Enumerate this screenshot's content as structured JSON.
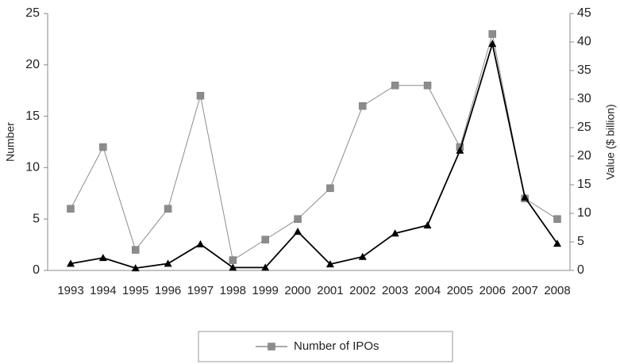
{
  "chart_data": {
    "type": "line",
    "categories": [
      "1993",
      "1994",
      "1995",
      "1996",
      "1997",
      "1998",
      "1999",
      "2000",
      "2001",
      "2002",
      "2003",
      "2004",
      "2005",
      "2006",
      "2007",
      "2008"
    ],
    "series": [
      {
        "name": "Number of IPOs",
        "color": "#8c8c8c",
        "marker": "square",
        "values": [
          6,
          12,
          2,
          6,
          17,
          1,
          3,
          5,
          8,
          16,
          18,
          18,
          12,
          23,
          7,
          5
        ]
      },
      {
        "color": "#000000",
        "marker": "triangle",
        "axis": "y2",
        "values": [
          1.2,
          2.2,
          0.4,
          1.2,
          4.6,
          0.5,
          0.5,
          6.8,
          1.1,
          2.4,
          6.5,
          7.9,
          21,
          39.7,
          12.8,
          4.7
        ]
      }
    ],
    "ylabel": "Number",
    "y2label": "Value ($ billion)",
    "ylim": [
      0,
      25
    ],
    "yticks": [
      0,
      5,
      10,
      15,
      20,
      25
    ],
    "y2lim": [
      0,
      45
    ],
    "y2ticks": [
      0,
      5,
      10,
      15,
      20,
      25,
      30,
      35,
      40,
      45
    ],
    "legend": "bottom"
  }
}
